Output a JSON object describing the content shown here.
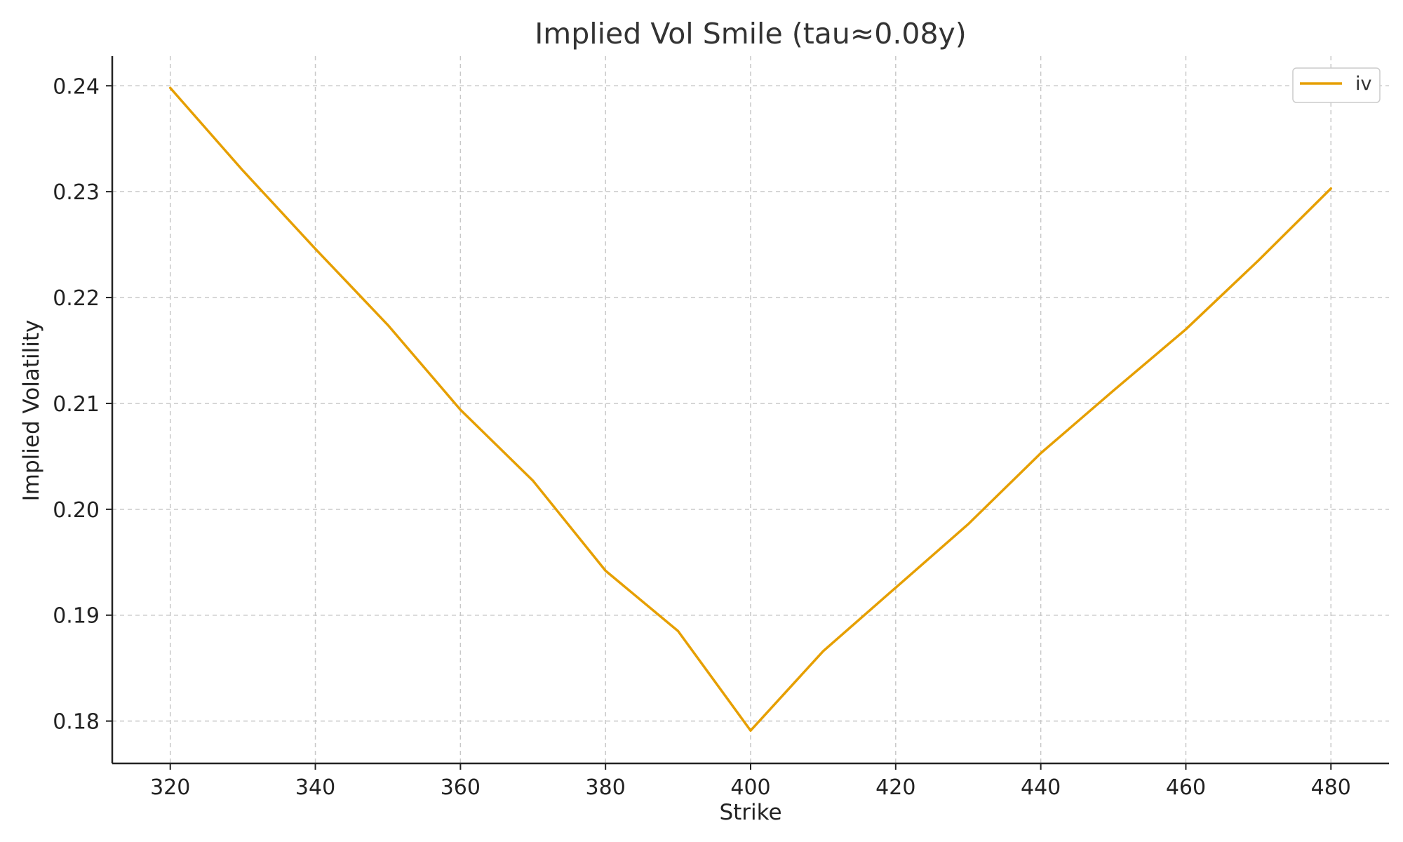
{
  "chart_data": {
    "type": "line",
    "title": "Implied Vol Smile (tau≈0.08y)",
    "xlabel": "Strike",
    "ylabel": "Implied Volatility",
    "xlim": [
      312,
      488
    ],
    "ylim": [
      0.176,
      0.2428
    ],
    "xticks": [
      320,
      340,
      360,
      380,
      400,
      420,
      440,
      460,
      480
    ],
    "xtick_labels": [
      "320",
      "340",
      "360",
      "380",
      "400",
      "420",
      "440",
      "460",
      "480"
    ],
    "yticks": [
      0.18,
      0.19,
      0.2,
      0.21,
      0.22,
      0.23,
      0.24
    ],
    "ytick_labels": [
      "0.18",
      "0.19",
      "0.20",
      "0.21",
      "0.22",
      "0.23",
      "0.24"
    ],
    "grid": true,
    "legend": {
      "position": "top-right"
    },
    "series": [
      {
        "name": "iv",
        "color": "#E69F00",
        "x": [
          320,
          330,
          340,
          350,
          360,
          370,
          380,
          390,
          400,
          410,
          420,
          430,
          440,
          450,
          460,
          470,
          480
        ],
        "y": [
          0.2398,
          0.232,
          0.2246,
          0.2174,
          0.2094,
          0.2027,
          0.1942,
          0.1885,
          0.1791,
          0.1866,
          0.1926,
          0.1986,
          0.2053,
          0.2112,
          0.217,
          0.2235,
          0.2303
        ]
      }
    ]
  }
}
